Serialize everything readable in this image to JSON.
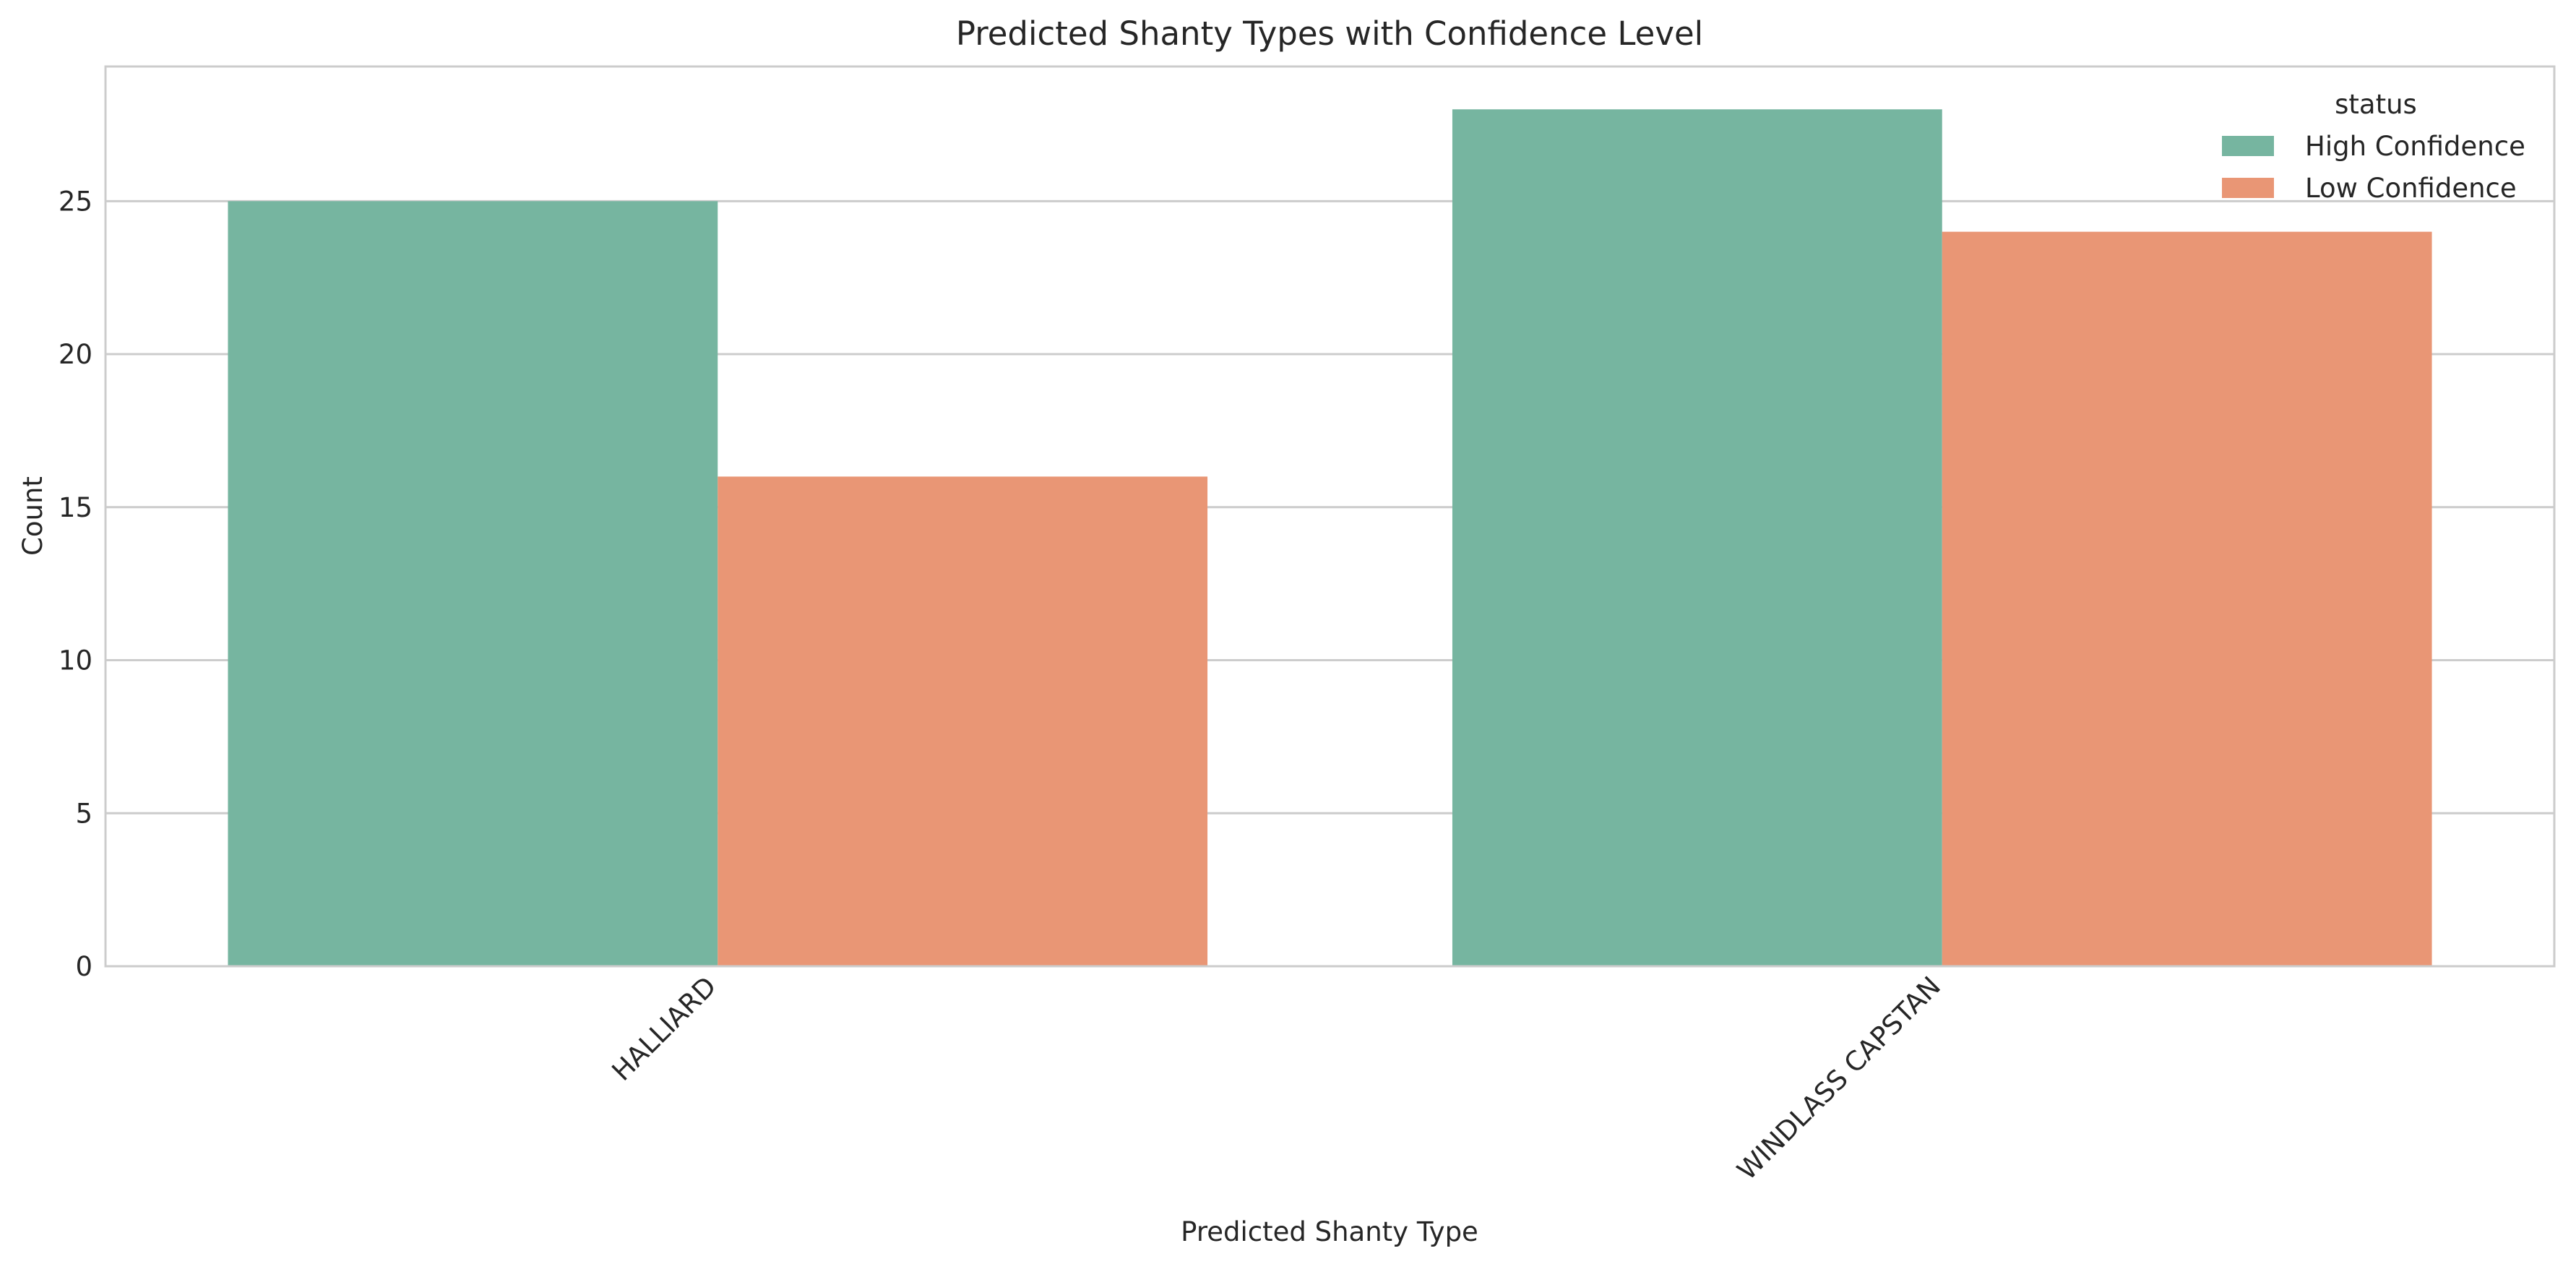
{
  "chart_data": {
    "type": "bar",
    "title": "Predicted Shanty Types with Confidence Level",
    "xlabel": "Predicted Shanty Type",
    "ylabel": "Count",
    "categories": [
      "HALLIARD",
      "WINDLASS CAPSTAN"
    ],
    "series": [
      {
        "name": "High Confidence",
        "values": [
          25,
          28
        ],
        "color": "#76b5a0"
      },
      {
        "name": "Low Confidence",
        "values": [
          16,
          24
        ],
        "color": "#e99675"
      }
    ],
    "ylim": [
      0,
      29.4
    ],
    "yticks": [
      0,
      5,
      10,
      15,
      20,
      25
    ],
    "grid": "horizontal",
    "legend": {
      "title": "status",
      "placement": "top-right"
    },
    "x_tick_rotation": "45 degrees"
  }
}
